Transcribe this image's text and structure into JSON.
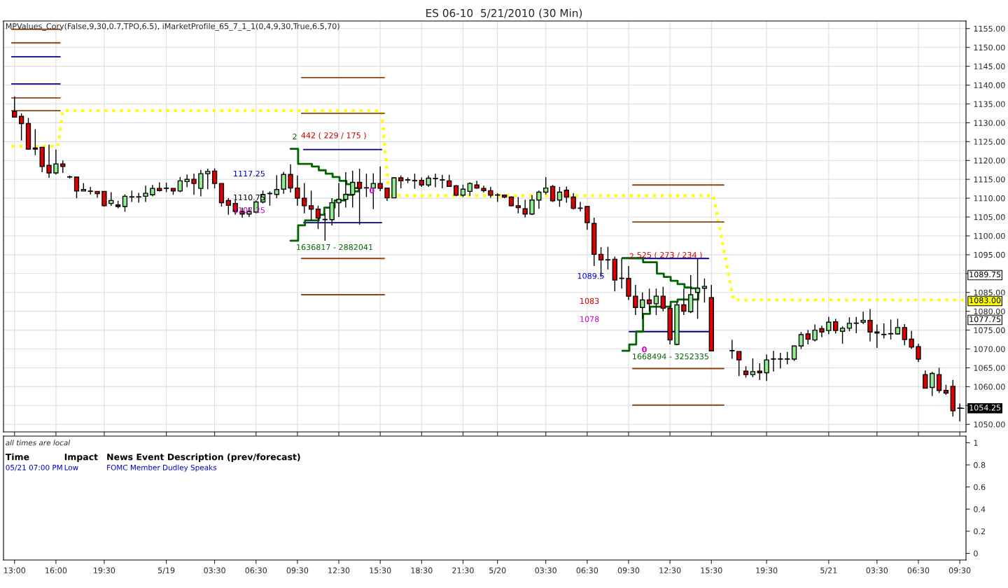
{
  "chart_data": [
    {
      "type": "candlestick",
      "title": "ES 06-10  5/21/2010 (30 Min)",
      "x": [
        "2010-05-18T13:00",
        "2010-05-18T13:30",
        "2010-05-18T14:00",
        "2010-05-18T14:30",
        "2010-05-18T15:00",
        "2010-05-18T15:30",
        "2010-05-18T16:00",
        "2010-05-18T16:30",
        "2010-05-18T17:00",
        "2010-05-18T17:30",
        "2010-05-18T18:00",
        "2010-05-18T18:30",
        "2010-05-18T19:00",
        "2010-05-18T19:30",
        "2010-05-18T20:00",
        "2010-05-18T20:30",
        "2010-05-18T21:00",
        "2010-05-18T21:30",
        "2010-05-18T22:00",
        "2010-05-18T22:30",
        "2010-05-18T23:00",
        "2010-05-18T23:30",
        "2010-05-19T00:00",
        "2010-05-19T00:30",
        "2010-05-19T01:00",
        "2010-05-19T01:30",
        "2010-05-19T02:00",
        "2010-05-19T02:30",
        "2010-05-19T03:00",
        "2010-05-19T03:30",
        "2010-05-19T04:00",
        "2010-05-19T04:30",
        "2010-05-19T05:00",
        "2010-05-19T05:30",
        "2010-05-19T06:00",
        "2010-05-19T06:30",
        "2010-05-19T07:00",
        "2010-05-19T07:30",
        "2010-05-19T08:00",
        "2010-05-19T08:30",
        "2010-05-19T09:00",
        "2010-05-19T09:30",
        "2010-05-19T10:00",
        "2010-05-19T10:30",
        "2010-05-19T11:00",
        "2010-05-19T11:30",
        "2010-05-19T12:00",
        "2010-05-19T12:30",
        "2010-05-19T13:00",
        "2010-05-19T13:30",
        "2010-05-19T14:00",
        "2010-05-19T14:30",
        "2010-05-19T15:00",
        "2010-05-19T15:30",
        "2010-05-19T16:00",
        "2010-05-19T16:30",
        "2010-05-19T17:00",
        "2010-05-19T17:30",
        "2010-05-19T18:00",
        "2010-05-19T18:30",
        "2010-05-19T19:00",
        "2010-05-19T19:30",
        "2010-05-19T20:00",
        "2010-05-19T20:30",
        "2010-05-19T21:00",
        "2010-05-19T21:30",
        "2010-05-19T22:00",
        "2010-05-19T22:30",
        "2010-05-19T23:00",
        "2010-05-19T23:30",
        "2010-05-20T00:00",
        "2010-05-20T00:30",
        "2010-05-20T01:00",
        "2010-05-20T01:30",
        "2010-05-20T02:00",
        "2010-05-20T02:30",
        "2010-05-20T03:00",
        "2010-05-20T03:30",
        "2010-05-20T04:00",
        "2010-05-20T04:30",
        "2010-05-20T05:00",
        "2010-05-20T05:30",
        "2010-05-20T06:00",
        "2010-05-20T06:30",
        "2010-05-20T07:00",
        "2010-05-20T07:30",
        "2010-05-20T08:00",
        "2010-05-20T08:30",
        "2010-05-20T09:00",
        "2010-05-20T09:30",
        "2010-05-20T10:00",
        "2010-05-20T10:30",
        "2010-05-20T11:00",
        "2010-05-20T11:30",
        "2010-05-20T12:00",
        "2010-05-20T12:30",
        "2010-05-20T13:00",
        "2010-05-20T13:30",
        "2010-05-20T14:00",
        "2010-05-20T14:30",
        "2010-05-20T15:00",
        "2010-05-20T15:30",
        "2010-05-20T17:00",
        "2010-05-20T17:30",
        "2010-05-20T18:00",
        "2010-05-20T18:30",
        "2010-05-20T19:00",
        "2010-05-20T19:30",
        "2010-05-20T20:00",
        "2010-05-20T20:30",
        "2010-05-20T21:00",
        "2010-05-20T21:30",
        "2010-05-20T22:00",
        "2010-05-20T22:30",
        "2010-05-20T23:00",
        "2010-05-20T23:30",
        "2010-05-21T00:00",
        "2010-05-21T00:30",
        "2010-05-21T01:00",
        "2010-05-21T01:30",
        "2010-05-21T02:00",
        "2010-05-21T02:30",
        "2010-05-21T03:00",
        "2010-05-21T03:30",
        "2010-05-21T04:00",
        "2010-05-21T04:30",
        "2010-05-21T05:00",
        "2010-05-21T05:30",
        "2010-05-21T06:00",
        "2010-05-21T06:30",
        "2010-05-21T07:00",
        "2010-05-21T07:30",
        "2010-05-21T08:00",
        "2010-05-21T08:30",
        "2010-05-21T09:00",
        "2010-05-21T09:30"
      ],
      "ohlc": [
        [
          1133,
          1137,
          1131.5,
          1131.5
        ],
        [
          1131.7,
          1132.5,
          1125.3,
          1129.8
        ],
        [
          1129.8,
          1131.3,
          1123,
          1123
        ],
        [
          1123.3,
          1128.3,
          1121.4,
          1123
        ],
        [
          1123.5,
          1123.5,
          1116.9,
          1118.4
        ],
        [
          1118.7,
          1124.2,
          1115.4,
          1116.7
        ],
        [
          1116.7,
          1122.9,
          1116.3,
          1119.1
        ],
        [
          1119.1,
          1120,
          1116.7,
          1118.4
        ],
        [
          1115.6,
          1116,
          1115.2,
          1115.6
        ],
        [
          1115.6,
          1115.6,
          1110,
          1111.9
        ],
        [
          1111.9,
          1114,
          1111.9,
          1112.3
        ],
        [
          1111.8,
          1113,
          1111,
          1111.8
        ],
        [
          1111.8,
          1111.8,
          1110.1,
          1111.2
        ],
        [
          1111.8,
          1111.8,
          1107.8,
          1108
        ],
        [
          1108.6,
          1111.6,
          1108,
          1109.4
        ],
        [
          1108.2,
          1109.3,
          1107.3,
          1107.8
        ],
        [
          1107.8,
          1111,
          1106.4,
          1110.5
        ],
        [
          1110.3,
          1112,
          1109,
          1110.3
        ],
        [
          1110.3,
          1111.4,
          1108.8,
          1110.3
        ],
        [
          1110.5,
          1113.3,
          1109,
          1111.3
        ],
        [
          1110.9,
          1113.5,
          1110.5,
          1112.6
        ],
        [
          1112.6,
          1114.2,
          1111.8,
          1112
        ],
        [
          1112.6,
          1114.1,
          1111.6,
          1112.6
        ],
        [
          1112.6,
          1112.6,
          1110.9,
          1111.9
        ],
        [
          1111.9,
          1115.6,
          1111.6,
          1114.6
        ],
        [
          1114.4,
          1116.3,
          1112.9,
          1115
        ],
        [
          1115,
          1116.5,
          1110.9,
          1113.9
        ],
        [
          1112.6,
          1117.5,
          1110.5,
          1116.5
        ],
        [
          1116.5,
          1117.8,
          1112.4,
          1117.1
        ],
        [
          1117.2,
          1117.9,
          1112.6,
          1113.9
        ],
        [
          1113.9,
          1113.9,
          1107.8,
          1108.8
        ],
        [
          1109.4,
          1110,
          1105.6,
          1108.1
        ],
        [
          1108.6,
          1109.4,
          1105.6,
          1106.5
        ],
        [
          1106.5,
          1107.5,
          1104.8,
          1105.8
        ],
        [
          1105.8,
          1107.5,
          1105,
          1106.5
        ],
        [
          1106.3,
          1109.4,
          1106,
          1109
        ],
        [
          1109,
          1112,
          1108.6,
          1111
        ],
        [
          1111.2,
          1111.8,
          1108,
          1111.2
        ],
        [
          1111,
          1116.1,
          1110,
          1112.3
        ],
        [
          1112.4,
          1117,
          1111.2,
          1116.3
        ],
        [
          1116.3,
          1119,
          1111.5,
          1112.7
        ],
        [
          1112.7,
          1116,
          1108,
          1110
        ],
        [
          1110,
          1114,
          1106,
          1108
        ],
        [
          1108,
          1112,
          1104,
          1107.1
        ],
        [
          1107.1,
          1108,
          1101.8,
          1104.7
        ],
        [
          1104.3,
          1106,
          1098.7,
          1104.3
        ],
        [
          1104.3,
          1110,
          1102.8,
          1108.8
        ],
        [
          1108.8,
          1114,
          1105,
          1109.7
        ],
        [
          1109.7,
          1116.9,
          1107.5,
          1111
        ],
        [
          1111,
          1117.3,
          1107.5,
          1114.2
        ],
        [
          1114.2,
          1117.8,
          1103,
          1112.6
        ],
        [
          1112.7,
          1116.5,
          1110.3,
          1112.7
        ],
        [
          1112.7,
          1116.6,
          1107.1,
          1113.9
        ],
        [
          1113.9,
          1118.4,
          1111.9,
          1112.6
        ],
        [
          1112.7,
          1112.7,
          1109.3,
          1110.1
        ],
        [
          1110.1,
          1115.6,
          1110.1,
          1115.4
        ],
        [
          1115.4,
          1116,
          1112.6,
          1114.6
        ],
        [
          1114.8,
          1115.5,
          1114,
          1114.8
        ],
        [
          1114.6,
          1116.5,
          1112.5,
          1114.6
        ],
        [
          1114.7,
          1115.5,
          1113,
          1113.5
        ],
        [
          1113.5,
          1116,
          1113,
          1115.3
        ],
        [
          1115.2,
          1116.5,
          1112.9,
          1115.2
        ],
        [
          1114.8,
          1116.2,
          1112.6,
          1114.8
        ],
        [
          1114.6,
          1116.2,
          1113,
          1113.1
        ],
        [
          1113.3,
          1113.5,
          1110.5,
          1110.8
        ],
        [
          1110.8,
          1113.6,
          1110.3,
          1112.4
        ],
        [
          1111.8,
          1114.2,
          1110.6,
          1113.9
        ],
        [
          1113.5,
          1114.6,
          1112.5,
          1112.7
        ],
        [
          1112.6,
          1113.3,
          1111.5,
          1112
        ],
        [
          1112,
          1113,
          1110.1,
          1110.8
        ],
        [
          1110.8,
          1111.3,
          1109,
          1110.8
        ],
        [
          1110.8,
          1111,
          1110,
          1110.3
        ],
        [
          1110.3,
          1110.5,
          1107.8,
          1108
        ],
        [
          1108,
          1110.3,
          1106,
          1107.5
        ],
        [
          1107.2,
          1109.6,
          1104.9,
          1105.8
        ],
        [
          1105.8,
          1110.8,
          1105.5,
          1109.5
        ],
        [
          1109.5,
          1112,
          1107.2,
          1111.6
        ],
        [
          1111.6,
          1115.6,
          1111,
          1112.7
        ],
        [
          1113.1,
          1113.5,
          1109,
          1109.3
        ],
        [
          1109.5,
          1113,
          1107.7,
          1111.6
        ],
        [
          1112.1,
          1113.1,
          1108.8,
          1110.3
        ],
        [
          1110.3,
          1111.3,
          1107,
          1107.3
        ],
        [
          1107.3,
          1109,
          1106.5,
          1107.3
        ],
        [
          1107.8,
          1107.8,
          1101.6,
          1103.5
        ],
        [
          1103.3,
          1104.8,
          1092,
          1095.1
        ],
        [
          1095.1,
          1097,
          1089.1,
          1093.6
        ],
        [
          1093.6,
          1097.1,
          1091.1,
          1093.6
        ],
        [
          1093.8,
          1094.5,
          1085.3,
          1088.3
        ],
        [
          1088.7,
          1094,
          1086,
          1088.7
        ],
        [
          1088.7,
          1092,
          1083,
          1084
        ],
        [
          1084,
          1087,
          1079,
          1081
        ],
        [
          1081,
          1085,
          1078,
          1083
        ],
        [
          1083,
          1086,
          1080,
          1082
        ],
        [
          1082,
          1086,
          1079,
          1084
        ],
        [
          1084,
          1086.5,
          1080,
          1080.8
        ],
        [
          1080.8,
          1081.5,
          1071.2,
          1072.4
        ],
        [
          1071.2,
          1082.5,
          1071,
          1081.7
        ],
        [
          1081.7,
          1086,
          1079,
          1080
        ],
        [
          1079.9,
          1089.6,
          1079.5,
          1084.4
        ],
        [
          1085,
          1094,
          1078,
          1086.1
        ],
        [
          1086.1,
          1088.7,
          1082.3,
          1086.6
        ],
        [
          1083.6,
          1087,
          1069.5,
          1069.5
        ],
        [
          1069.5,
          1072.4,
          1067.4,
          1069.5
        ],
        [
          1069.3,
          1069.3,
          1062.8,
          1067.1
        ],
        [
          1064.1,
          1065.4,
          1062.4,
          1063.2
        ],
        [
          1063.2,
          1067.5,
          1062.5,
          1064
        ],
        [
          1064.1,
          1066.2,
          1061.8,
          1063.7
        ],
        [
          1063.7,
          1068.5,
          1061.5,
          1067.1
        ],
        [
          1067.3,
          1069.5,
          1064,
          1067.3
        ],
        [
          1067.3,
          1069,
          1064.8,
          1067.3
        ],
        [
          1067.3,
          1069.2,
          1065.9,
          1067.3
        ],
        [
          1067.3,
          1070.8,
          1066.8,
          1070.8
        ],
        [
          1070.8,
          1074.5,
          1070,
          1073.8
        ],
        [
          1074,
          1075,
          1071.2,
          1072.6
        ],
        [
          1072.4,
          1076.5,
          1072,
          1075
        ],
        [
          1075.4,
          1076.2,
          1073.1,
          1074.5
        ],
        [
          1074.9,
          1078.5,
          1073.9,
          1077.1
        ],
        [
          1077.2,
          1078,
          1074.1,
          1074.9
        ],
        [
          1074.7,
          1076,
          1071.4,
          1075.5
        ],
        [
          1075.5,
          1078.4,
          1074.7,
          1076.8
        ],
        [
          1076.8,
          1078.5,
          1074.2,
          1076.8
        ],
        [
          1077.1,
          1079.9,
          1076.6,
          1077.6
        ],
        [
          1077.6,
          1080.6,
          1072,
          1074.5
        ],
        [
          1074.5,
          1076.5,
          1070.3,
          1074.2
        ],
        [
          1073.8,
          1076.8,
          1072.8,
          1073.8
        ],
        [
          1074,
          1077.8,
          1072.5,
          1074
        ],
        [
          1074,
          1078,
          1073.8,
          1075.7
        ],
        [
          1075.7,
          1076.6,
          1071,
          1072.5
        ],
        [
          1072.6,
          1074.8,
          1070,
          1070.5
        ],
        [
          1070.6,
          1071.4,
          1066.5,
          1067.3
        ],
        [
          1063.2,
          1064.3,
          1059.6,
          1059.6
        ],
        [
          1059.8,
          1063.9,
          1057.5,
          1063.5
        ],
        [
          1063.2,
          1065,
          1058.3,
          1059
        ],
        [
          1059,
          1060.5,
          1057.8,
          1058.3
        ],
        [
          1060.1,
          1061.8,
          1052.1,
          1053.6
        ],
        [
          1054.25,
          1055.5,
          1050.8,
          1054.25
        ]
      ],
      "colors": [
        "#e00000",
        "#e00000",
        "#e00000",
        "#e00000",
        "#e00000",
        "#e00000",
        "#90ee90",
        "#e00000",
        "#000000",
        "#e00000",
        "#90ee90",
        "#000000",
        "#e00000",
        "#e00000",
        "#90ee90",
        "#e00000",
        "#90ee90",
        "#000000",
        "#000000",
        "#90ee90",
        "#90ee90",
        "#e00000",
        "#000000",
        "#e00000",
        "#90ee90",
        "#90ee90",
        "#e00000",
        "#90ee90",
        "#90ee90",
        "#e00000",
        "#e00000",
        "#e00000",
        "#e00000",
        "#e00000",
        "#90ee90",
        "#90ee90",
        "#90ee90",
        "#000000",
        "#90ee90",
        "#90ee90",
        "#e00000",
        "#e00000",
        "#e00000",
        "#e00000",
        "#e00000",
        "#000000",
        "#90ee90",
        "#90ee90",
        "#90ee90",
        "#90ee90",
        "#e00000",
        "#000000",
        "#90ee90",
        "#e00000",
        "#e00000",
        "#90ee90",
        "#e00000",
        "#000000",
        "#000000",
        "#e00000",
        "#90ee90",
        "#000000",
        "#000000",
        "#e00000",
        "#e00000",
        "#90ee90",
        "#90ee90",
        "#e00000",
        "#e00000",
        "#e00000",
        "#000000",
        "#e00000",
        "#e00000",
        "#e00000",
        "#e00000",
        "#90ee90",
        "#90ee90",
        "#90ee90",
        "#e00000",
        "#90ee90",
        "#e00000",
        "#e00000",
        "#000000",
        "#e00000",
        "#e00000",
        "#e00000",
        "#000000",
        "#e00000",
        "#000000",
        "#e00000",
        "#e00000",
        "#90ee90",
        "#e00000",
        "#90ee90",
        "#e00000",
        "#e00000",
        "#90ee90",
        "#e00000",
        "#90ee90",
        "#90ee90",
        "#90ee90",
        "#e00000",
        "#000000",
        "#e00000",
        "#e00000",
        "#90ee90",
        "#e00000",
        "#90ee90",
        "#000000",
        "#000000",
        "#000000",
        "#90ee90",
        "#90ee90",
        "#e00000",
        "#90ee90",
        "#e00000",
        "#90ee90",
        "#e00000",
        "#90ee90",
        "#90ee90",
        "#000000",
        "#90ee90",
        "#e00000",
        "#e00000",
        "#000000",
        "#000000",
        "#90ee90",
        "#e00000",
        "#e00000",
        "#e00000",
        "#e00000",
        "#90ee90",
        "#e00000",
        "#e00000",
        "#e00000",
        "#000000"
      ],
      "series": [
        {
          "type": "line",
          "color": "#ffff00",
          "line_style": "dotted",
          "x": [
            "2010-05-18T12:48",
            "2010-05-18T16:09",
            "2010-05-18T16:30",
            "2010-05-19T15:36",
            "2010-05-19T16:09",
            "2010-05-20T15:39",
            "2010-05-20T17:06",
            "2010-05-21T09:57"
          ],
          "values": [
            1123.8,
            1123.8,
            1133.2,
            1133.2,
            1110.7,
            1110.7,
            1083,
            1083
          ]
        },
        {
          "type": "line",
          "color": "#8b4513",
          "line_style": "solid",
          "x": [
            "2010-05-18T12:48",
            "2010-05-18T16:18"
          ],
          "values": [
            1154.8,
            1154.8
          ]
        },
        {
          "type": "line",
          "color": "#8b4513",
          "line_style": "solid",
          "x": [
            "2010-05-18T12:48",
            "2010-05-18T16:18"
          ],
          "values": [
            1151.2,
            1151.2
          ]
        },
        {
          "type": "line",
          "color": "#8b4513",
          "line_style": "solid",
          "x": [
            "2010-05-18T12:48",
            "2010-05-18T16:18"
          ],
          "values": [
            1136.6,
            1136.6
          ]
        },
        {
          "type": "line",
          "color": "#8b4513",
          "line_style": "solid",
          "x": [
            "2010-05-18T12:48",
            "2010-05-18T16:18"
          ],
          "values": [
            1133.2,
            1133.2
          ]
        },
        {
          "type": "line",
          "color": "#8b4513",
          "line_style": "solid",
          "x": [
            "2010-05-19T09:48",
            "2010-05-19T15:48"
          ],
          "values": [
            1142,
            1142
          ]
        },
        {
          "type": "line",
          "color": "#8b4513",
          "line_style": "solid",
          "x": [
            "2010-05-19T09:48",
            "2010-05-19T15:48"
          ],
          "values": [
            1132.5,
            1132.5
          ]
        },
        {
          "type": "line",
          "color": "#8b4513",
          "line_style": "solid",
          "x": [
            "2010-05-19T09:48",
            "2010-05-19T15:48"
          ],
          "values": [
            1094,
            1094
          ]
        },
        {
          "type": "line",
          "color": "#8b4513",
          "line_style": "solid",
          "x": [
            "2010-05-19T09:48",
            "2010-05-19T15:48"
          ],
          "values": [
            1084.4,
            1084.4
          ]
        },
        {
          "type": "line",
          "color": "#8b4513",
          "line_style": "solid",
          "x": [
            "2010-05-20T09:48",
            "2010-05-20T16:24"
          ],
          "values": [
            1113.5,
            1113.5
          ]
        },
        {
          "type": "line",
          "color": "#8b4513",
          "line_style": "solid",
          "x": [
            "2010-05-20T09:48",
            "2010-05-20T16:24"
          ],
          "values": [
            1103.7,
            1103.7
          ]
        },
        {
          "type": "line",
          "color": "#8b4513",
          "line_style": "solid",
          "x": [
            "2010-05-20T09:48",
            "2010-05-20T16:24"
          ],
          "values": [
            1064.8,
            1064.8
          ]
        },
        {
          "type": "line",
          "color": "#8b4513",
          "line_style": "solid",
          "x": [
            "2010-05-20T09:48",
            "2010-05-20T16:24"
          ],
          "values": [
            1055.1,
            1055.1
          ]
        },
        {
          "type": "line",
          "color": "#00008b",
          "line_style": "solid",
          "x": [
            "2010-05-18T12:48",
            "2010-05-18T16:18"
          ],
          "values": [
            1147.5,
            1147.5
          ]
        },
        {
          "type": "line",
          "color": "#00008b",
          "line_style": "solid",
          "x": [
            "2010-05-18T12:48",
            "2010-05-18T16:18"
          ],
          "values": [
            1140.3,
            1140.3
          ]
        },
        {
          "type": "line",
          "color": "#00008b",
          "line_style": "solid",
          "x": [
            "2010-05-19T09:57",
            "2010-05-19T15:36"
          ],
          "values": [
            1122.9,
            1122.9
          ]
        },
        {
          "type": "line",
          "color": "#00008b",
          "line_style": "solid",
          "x": [
            "2010-05-19T09:57",
            "2010-05-19T15:36"
          ],
          "values": [
            1103.5,
            1103.5
          ]
        },
        {
          "type": "line",
          "color": "#00008b",
          "line_style": "solid",
          "x": [
            "2010-05-20T09:33",
            "2010-05-20T15:18"
          ],
          "values": [
            1094,
            1094
          ]
        },
        {
          "type": "line",
          "color": "#00008b",
          "line_style": "solid",
          "x": [
            "2010-05-20T09:33",
            "2010-05-20T15:18"
          ],
          "values": [
            1074.6,
            1074.6
          ]
        },
        {
          "type": "step",
          "color": "#006400",
          "line_style": "solid",
          "x": [
            "2010-05-19T09:00",
            "2010-05-19T09:33",
            "2010-05-19T09:33",
            "2010-05-19T10:33",
            "2010-05-19T11:03",
            "2010-05-19T11:33",
            "2010-05-19T12:03",
            "2010-05-19T12:33",
            "2010-05-19T13:03",
            "2010-05-19T13:33",
            "2010-05-19T13:57",
            "2010-05-19T13:33",
            "2010-05-19T12:57",
            "2010-05-19T12:12",
            "2010-05-19T11:27",
            "2010-05-19T11:03",
            "2010-05-19T10:03",
            "2010-05-19T09:33",
            "2010-05-19T09:33",
            "2010-05-19T09:00"
          ],
          "values": [
            1123.1,
            1123.1,
            1119.1,
            1118.4,
            1117.4,
            1116.5,
            1115.6,
            1114.6,
            1113.7,
            1112.7,
            1111.8,
            1110.9,
            1109.4,
            1107.5,
            1105.6,
            1104.1,
            1102.8,
            1101.3,
            1098.7,
            1098.7
          ]
        },
        {
          "type": "step",
          "color": "#006400",
          "line_style": "solid",
          "x": [
            "2010-05-20T09:03",
            "2010-05-20T10:33",
            "2010-05-20T10:33",
            "2010-05-20T11:33",
            "2010-05-20T12:03",
            "2010-05-20T12:33",
            "2010-05-20T13:03",
            "2010-05-20T13:33",
            "2010-05-20T14:03",
            "2010-05-20T14:33",
            "2010-05-20T14:33",
            "2010-05-20T13:03",
            "2010-05-20T12:33",
            "2010-05-20T11:03",
            "2010-05-20T10:33",
            "2010-05-20T10:33",
            "2010-05-20T10:03",
            "2010-05-20T09:33",
            "2010-05-20T09:03"
          ],
          "values": [
            1094.1,
            1094.1,
            1093,
            1090,
            1089.1,
            1088.1,
            1087.2,
            1086.3,
            1086.1,
            1085.9,
            1083.1,
            1082.5,
            1081.2,
            1079.3,
            1078.4,
            1074.6,
            1071.2,
            1069.5,
            1069.5
          ]
        }
      ],
      "xlim": [
        "2010-05-18T12:12",
        "2010-05-21T09:57"
      ],
      "xticks": [
        {
          "value": "2010-05-18T13:00",
          "label": null
        },
        {
          "value": "2010-05-18T16:00",
          "label": null
        },
        {
          "value": "2010-05-18T19:30",
          "label": null
        },
        {
          "value": "2010-05-19T00:00",
          "label": null
        },
        {
          "value": "2010-05-19T03:30",
          "label": null
        },
        {
          "value": "2010-05-19T06:30",
          "label": null
        },
        {
          "value": "2010-05-19T09:30",
          "label": null
        },
        {
          "value": "2010-05-19T12:30",
          "label": null
        },
        {
          "value": "2010-05-19T15:30",
          "label": null
        },
        {
          "value": "2010-05-19T18:30",
          "label": null
        },
        {
          "value": "2010-05-19T21:30",
          "label": null
        },
        {
          "value": "2010-05-20T00:00",
          "label": null
        },
        {
          "value": "2010-05-20T03:30",
          "label": null
        },
        {
          "value": "2010-05-20T06:30",
          "label": null
        },
        {
          "value": "2010-05-20T09:30",
          "label": null
        },
        {
          "value": "2010-05-20T12:30",
          "label": null
        },
        {
          "value": "2010-05-20T15:30",
          "label": null
        },
        {
          "value": "2010-05-20T19:30",
          "label": null
        },
        {
          "value": "2010-05-21T00:00",
          "label": null
        },
        {
          "value": "2010-05-21T03:30",
          "label": null
        },
        {
          "value": "2010-05-21T06:30",
          "label": null
        },
        {
          "value": "2010-05-21T09:30",
          "label": null
        }
      ],
      "ylim": [
        1048,
        1157
      ],
      "yticks": [
        {
          "value": 1050,
          "label": "1050.00"
        },
        {
          "value": 1055,
          "label": null
        },
        {
          "value": 1060,
          "label": "1060.00"
        },
        {
          "value": 1065,
          "label": "1065.00"
        },
        {
          "value": 1070,
          "label": "1070.00"
        },
        {
          "value": 1075,
          "label": "1075.00"
        },
        {
          "value": 1080,
          "label": "1080.00"
        },
        {
          "value": 1085,
          "label": "1085.00"
        },
        {
          "value": 1090,
          "label": null
        },
        {
          "value": 1095,
          "label": "1095.00"
        },
        {
          "value": 1100,
          "label": "1100.00"
        },
        {
          "value": 1105,
          "label": "1105.00"
        },
        {
          "value": 1110,
          "label": "1110.00"
        },
        {
          "value": 1115,
          "label": "1115.00"
        },
        {
          "value": 1120,
          "label": "1120.00"
        },
        {
          "value": 1125,
          "label": "1125.00"
        },
        {
          "value": 1130,
          "label": "1130.00"
        },
        {
          "value": 1135,
          "label": "1135.00"
        },
        {
          "value": 1140,
          "label": "1140.00"
        },
        {
          "value": 1145,
          "label": "1145.00"
        },
        {
          "value": 1150,
          "label": "1150.00"
        },
        {
          "value": 1155,
          "label": "1155.00"
        }
      ],
      "grid": true,
      "tick_labels": "y",
      "annotations": [
        "MPValues_Cory(False,9,30,0.7,TPO,6.5), iMarketProfile_65_7_1_1(0,4,9,30,True,6.5,70)",
        "2",
        "442 ( 229 / 175 )",
        "1636817 - 2882041",
        "1117.25",
        "1110.75",
        "1107.25",
        "0",
        "2",
        "525 ( 273 / 234 )",
        "1668494 - 3252335",
        "0",
        "1089.5",
        "1083",
        "1078",
        "1089.75",
        "1083.00",
        "1077.75",
        {
          "text": "1054.25",
          "x": "2010-05-21T09:30",
          "y": 1054.25
        }
      ]
    },
    {
      "type": "line",
      "xlim": [
        "2010-05-18T12:12",
        "2010-05-21T09:57"
      ],
      "xticks": [
        {
          "value": "2010-05-18T13:00",
          "label": "13:00"
        },
        {
          "value": "2010-05-18T16:00",
          "label": "16:00"
        },
        {
          "value": "2010-05-18T19:30",
          "label": "19:30"
        },
        {
          "value": "2010-05-19T00:00",
          "label": "5/19"
        },
        {
          "value": "2010-05-19T03:30",
          "label": "03:30"
        },
        {
          "value": "2010-05-19T06:30",
          "label": "06:30"
        },
        {
          "value": "2010-05-19T09:30",
          "label": "09:30"
        },
        {
          "value": "2010-05-19T12:30",
          "label": "12:30"
        },
        {
          "value": "2010-05-19T15:30",
          "label": "15:30"
        },
        {
          "value": "2010-05-19T18:30",
          "label": "18:30"
        },
        {
          "value": "2010-05-19T21:30",
          "label": "21:30"
        },
        {
          "value": "2010-05-20T00:00",
          "label": "5/20"
        },
        {
          "value": "2010-05-20T03:30",
          "label": "03:30"
        },
        {
          "value": "2010-05-20T06:30",
          "label": "06:30"
        },
        {
          "value": "2010-05-20T09:30",
          "label": "09:30"
        },
        {
          "value": "2010-05-20T12:30",
          "label": "12:30"
        },
        {
          "value": "2010-05-20T15:30",
          "label": "15:30"
        },
        {
          "value": "2010-05-20T19:30",
          "label": "19:30"
        },
        {
          "value": "2010-05-21T00:00",
          "label": "5/21"
        },
        {
          "value": "2010-05-21T03:30",
          "label": "03:30"
        },
        {
          "value": "2010-05-21T06:30",
          "label": "06:30"
        },
        {
          "value": "2010-05-21T09:30",
          "label": "09:30"
        }
      ],
      "ylim": [
        -0.06,
        1.06
      ],
      "yticks": [
        0,
        0.2,
        0.4,
        0.6,
        0.8,
        1
      ],
      "annotations": [
        "all times are local",
        "Time",
        "Impact",
        "News Event Description (prev/forecast)",
        "05/21 07:00 PM",
        "Low",
        "FOMC Member Dudley Speaks"
      ]
    }
  ]
}
